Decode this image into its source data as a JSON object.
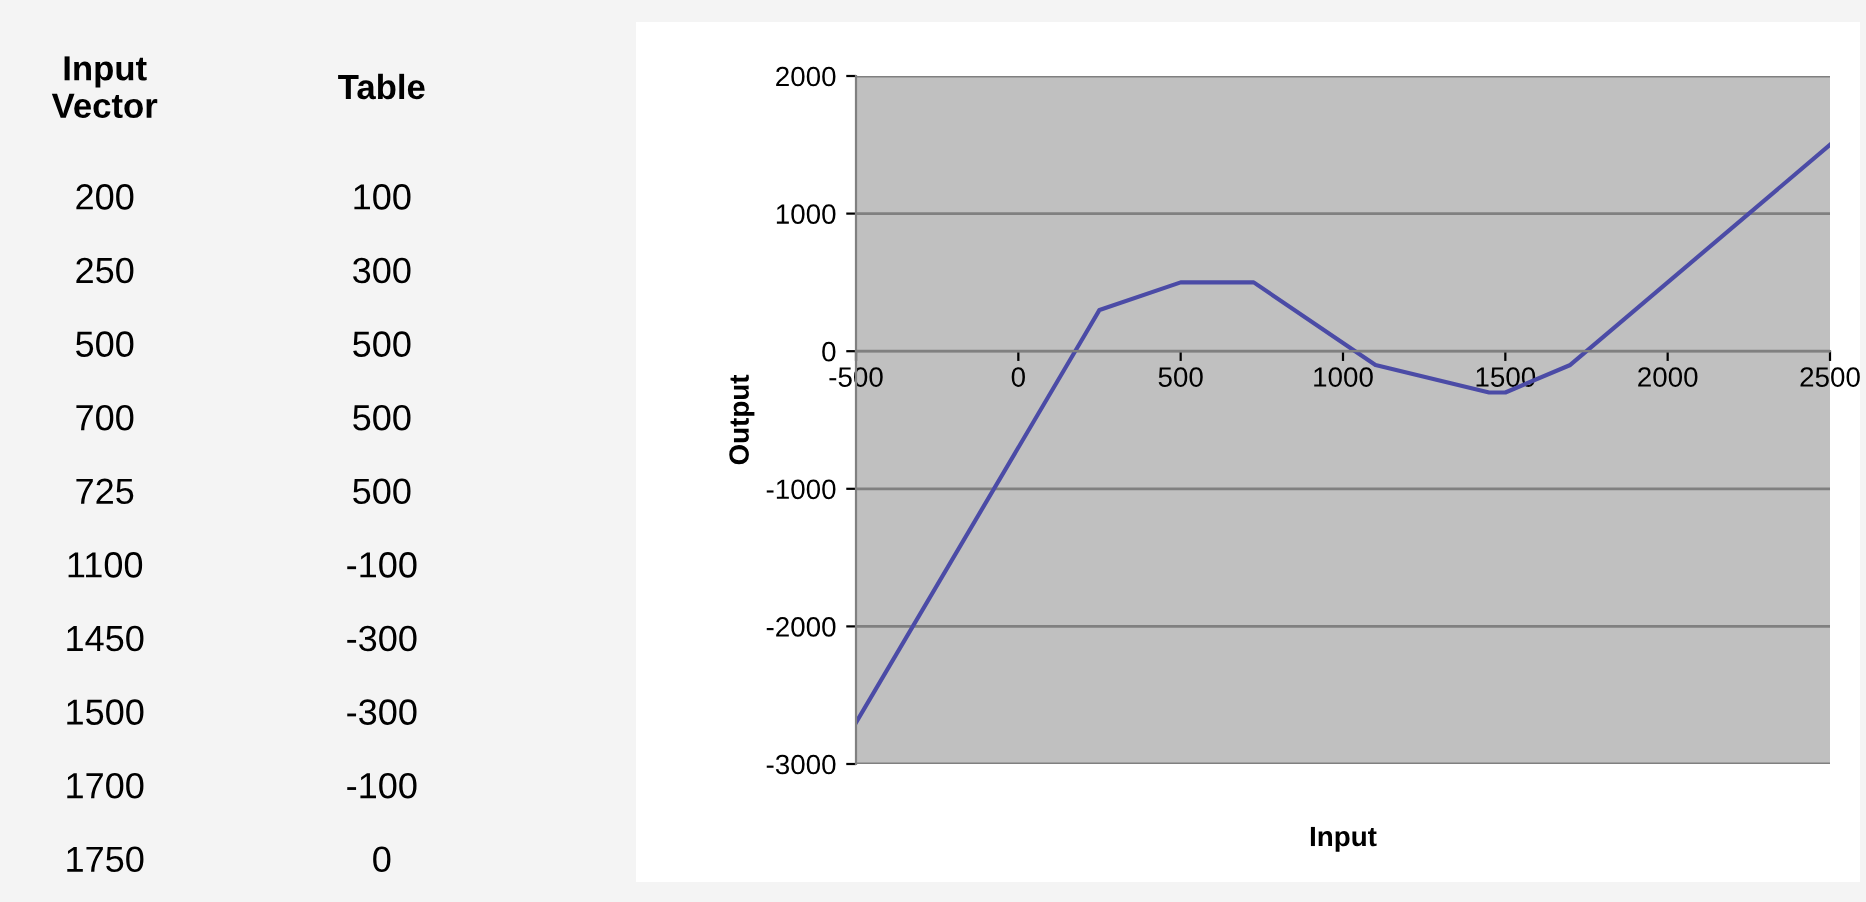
{
  "chart_data": [
    {
      "type": "other",
      "annotations": [
        "Input\nVector",
        "Table",
        "200",
        "100",
        "250",
        "300",
        "500",
        "500",
        "700",
        "500",
        "725",
        "500",
        "1100",
        "-100",
        "1450",
        "-300",
        "1500",
        "-300",
        "1700",
        "-100",
        "1750",
        "0"
      ]
    },
    {
      "type": "line",
      "xlabel": "Input",
      "ylabel": "Output",
      "color": "#4b4ba6",
      "x": [
        -500,
        200,
        250,
        500,
        700,
        725,
        1100,
        1450,
        1500,
        1700,
        1750,
        2500
      ],
      "values": [
        -2700,
        100,
        300,
        500,
        500,
        500,
        -100,
        -300,
        -300,
        -100,
        0,
        1500
      ],
      "xlim": [
        -500,
        2500
      ],
      "ylim": [
        -3000,
        2000
      ],
      "xticks": [
        -500,
        0,
        500,
        1000,
        1500,
        2000,
        2500
      ],
      "yticks": [
        -3000,
        -2000,
        -1000,
        0,
        1000,
        2000
      ],
      "grid": "y"
    }
  ]
}
